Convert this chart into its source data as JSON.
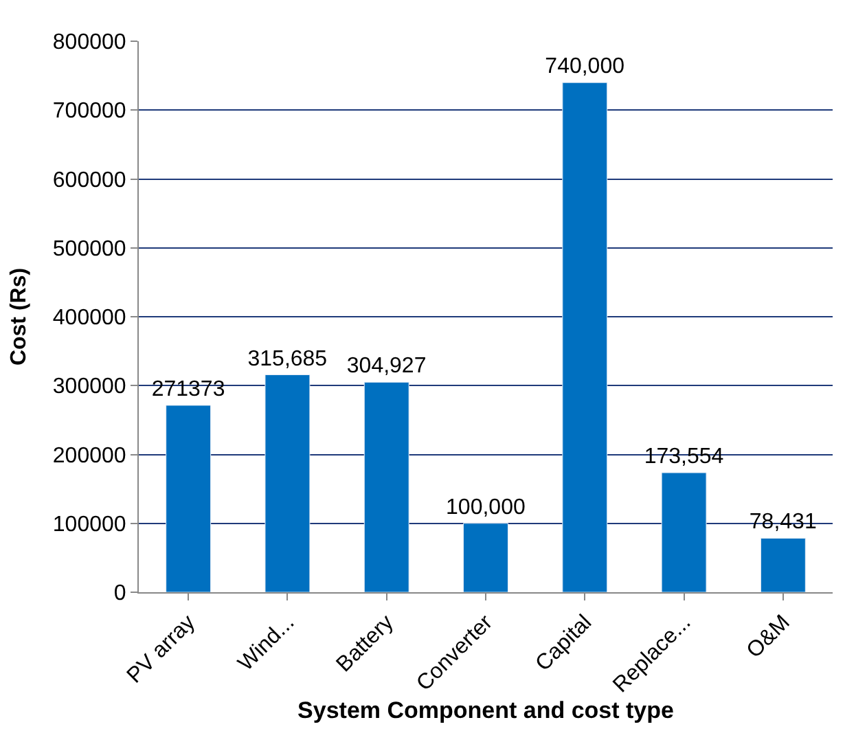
{
  "chart_data": {
    "type": "bar",
    "xlabel": "System Component and cost type",
    "ylabel": "Cost (Rs)",
    "categories": [
      "PV array",
      "Wind...",
      "Battery",
      "Converter",
      "Capital",
      "Replace...",
      "O&M"
    ],
    "values": [
      271373,
      315685,
      304927,
      100000,
      740000,
      173554,
      78431
    ],
    "value_labels": [
      "271373",
      "315,685",
      "304,927",
      "100,000",
      "740,000",
      "173,554",
      "78,431"
    ],
    "color": "#0070c0",
    "ylim": [
      0,
      800000
    ],
    "yticks": [
      0,
      100000,
      200000,
      300000,
      400000,
      500000,
      600000,
      700000,
      800000
    ],
    "grid": "y",
    "legend": false
  }
}
